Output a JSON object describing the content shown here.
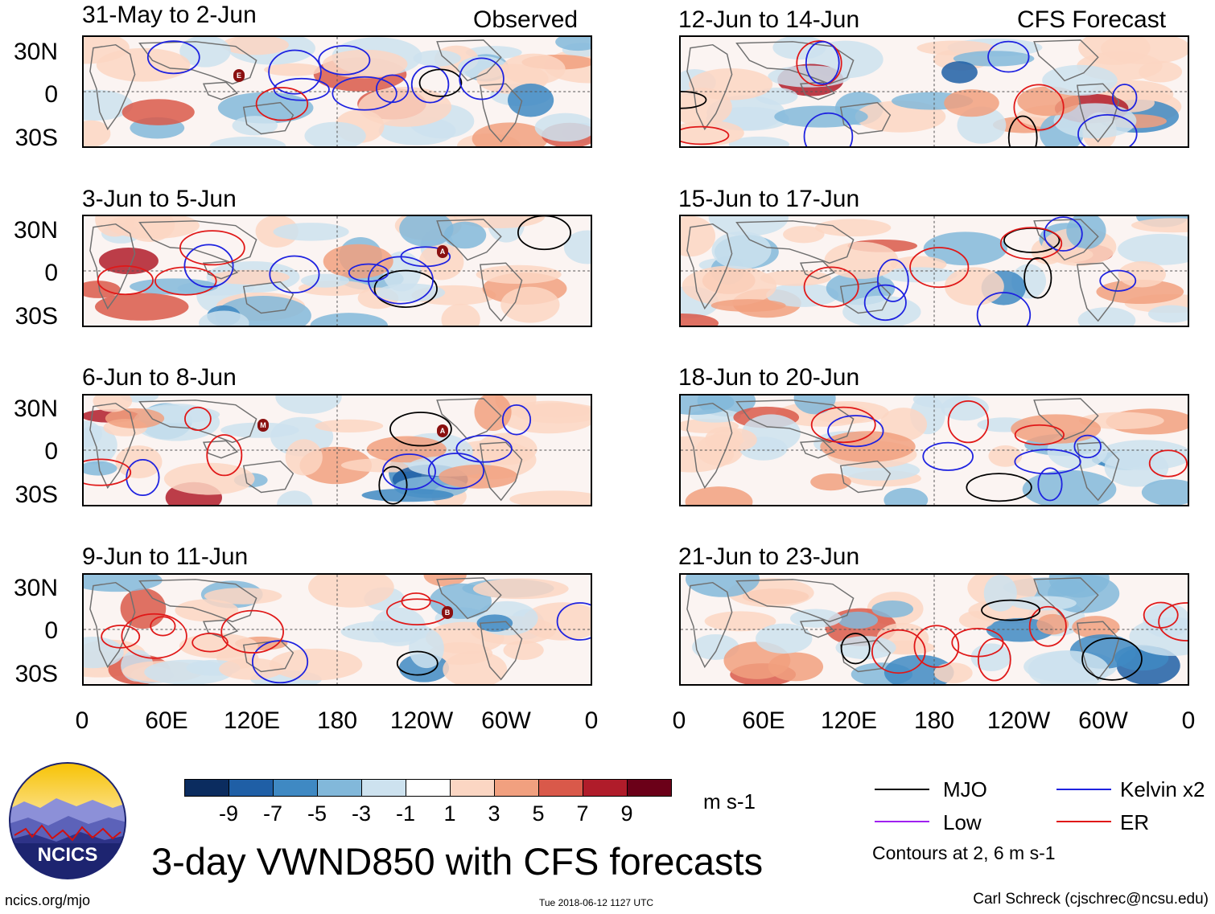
{
  "figure": {
    "title": "3-day VWND850 with CFS forecasts",
    "units": "m s-1",
    "contour_note": "Contours at 2, 6 m s-1",
    "credit": "Carl Schreck (cjschrec@ncsu.edu)",
    "url": "ncics.org/mjo",
    "timestamp": "Tue 2018-06-12 1127 UTC",
    "logo_text": "NCICS"
  },
  "columns": {
    "left_header": "Observed",
    "right_header": "CFS Forecast"
  },
  "panels_left": [
    {
      "title": "31-May to 2-Jun",
      "storms": [
        "E"
      ]
    },
    {
      "title": "3-Jun to 5-Jun",
      "storms": [
        "A"
      ]
    },
    {
      "title": "6-Jun to 8-Jun",
      "storms": [
        "M",
        "A"
      ]
    },
    {
      "title": "9-Jun to 11-Jun",
      "storms": [
        "B"
      ]
    }
  ],
  "panels_right": [
    {
      "title": "12-Jun to 14-Jun"
    },
    {
      "title": "15-Jun to 17-Jun"
    },
    {
      "title": "18-Jun to 20-Jun"
    },
    {
      "title": "21-Jun to 23-Jun"
    }
  ],
  "lat_labels": [
    "30N",
    "0",
    "30S"
  ],
  "lon_labels": [
    "0",
    "60E",
    "120E",
    "180",
    "120W",
    "60W",
    "0"
  ],
  "colorbar": {
    "levels": [
      "-9",
      "-7",
      "-5",
      "-3",
      "-1",
      "1",
      "3",
      "5",
      "7",
      "9"
    ],
    "colors": [
      "#0b2c5f",
      "#1f5fa6",
      "#3f89c3",
      "#82b8da",
      "#cde2ef",
      "#ffffff",
      "#fbd6c3",
      "#f1a07f",
      "#d9594a",
      "#b01c2a",
      "#6b0018"
    ]
  },
  "legend": [
    {
      "label": "MJO",
      "color": "#000000"
    },
    {
      "label": "Kelvin x2",
      "color": "#1e22e0"
    },
    {
      "label": "Low",
      "color": "#a020f0"
    },
    {
      "label": "ER",
      "color": "#e01818"
    }
  ]
}
